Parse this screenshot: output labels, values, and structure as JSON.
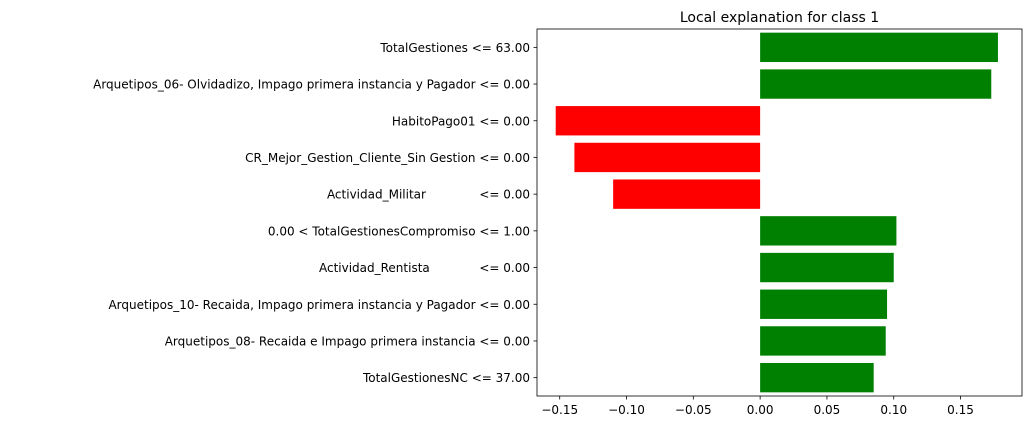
{
  "chart_data": {
    "type": "bar",
    "orientation": "horizontal",
    "title": "Local explanation for class 1",
    "xlabel": "",
    "ylabel": "",
    "xlim": [
      -0.167,
      0.196
    ],
    "xticks": [
      -0.15,
      -0.1,
      -0.05,
      0.0,
      0.05,
      0.1,
      0.15
    ],
    "xtick_labels": [
      "−0.15",
      "−0.10",
      "−0.05",
      "0.00",
      "0.05",
      "0.10",
      "0.15"
    ],
    "grid": false,
    "legend": "none",
    "positive_color": "#008000",
    "negative_color": "#ff0000",
    "categories": [
      "TotalGestiones <= 63.00",
      "Arquetipos_06- Olvidadizo, Impago primera instancia y Pagador <= 0.00",
      "HabitoPago01 <= 0.00",
      "CR_Mejor_Gestion_Cliente_Sin Gestion <= 0.00",
      "Actividad_Militar              <= 0.00",
      "0.00 < TotalGestionesCompromiso <= 1.00",
      "Actividad_Rentista             <= 0.00",
      "Arquetipos_10- Recaida, Impago primera instancia y Pagador <= 0.00",
      "Arquetipos_08- Recaida e Impago primera instancia <= 0.00",
      "TotalGestionesNC <= 37.00"
    ],
    "values": [
      0.178,
      0.173,
      -0.153,
      -0.139,
      -0.11,
      0.102,
      0.1,
      0.095,
      0.094,
      0.085
    ]
  }
}
